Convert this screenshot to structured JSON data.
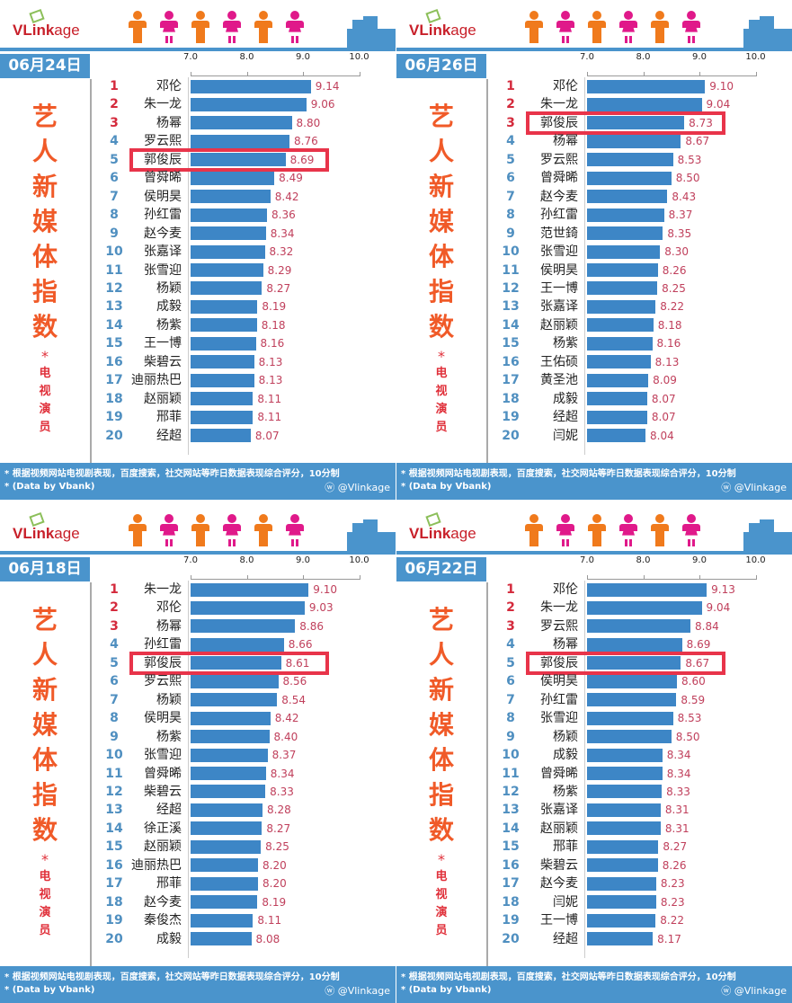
{
  "brand": {
    "logo_main": "VLink",
    "logo_suffix": "age"
  },
  "sidebar": {
    "title_chars": [
      "艺",
      "人",
      "新",
      "媒",
      "体",
      "指",
      "数"
    ],
    "star": "*",
    "subtitle_chars": [
      "电",
      "视",
      "演",
      "员"
    ]
  },
  "footer": {
    "note": "* 根据视频网站电视剧表现，百度搜索，社交网站等昨日数据表现综合评分，10分制",
    "source": "* (Data by Vbank)",
    "weibo": "@Vlinkage"
  },
  "colors": {
    "bar": "#3d86c6",
    "highlight": "#e8344a",
    "header": "#4a94cc",
    "male": "#f07a1c",
    "female": "#e0198a"
  },
  "chart_data": [
    {
      "type": "bar",
      "title": "06月24日",
      "xlim": [
        7.0,
        10.0
      ],
      "ticks": [
        "7.0",
        "8.0",
        "9.0",
        "10.0"
      ],
      "highlight": "郭俊辰",
      "categories": [
        "邓伦",
        "朱一龙",
        "杨幂",
        "罗云熙",
        "郭俊辰",
        "曾舜晞",
        "侯明昊",
        "孙红雷",
        "赵今麦",
        "张嘉译",
        "张雪迎",
        "杨颖",
        "成毅",
        "杨紫",
        "王一博",
        "柴碧云",
        "迪丽热巴",
        "赵丽颖",
        "邢菲",
        "经超"
      ],
      "values": [
        "9.14",
        "9.06",
        "8.80",
        "8.76",
        "8.69",
        "8.49",
        "8.42",
        "8.36",
        "8.34",
        "8.32",
        "8.29",
        "8.27",
        "8.19",
        "8.18",
        "8.16",
        "8.13",
        "8.13",
        "8.11",
        "8.11",
        "8.07"
      ]
    },
    {
      "type": "bar",
      "title": "06月26日",
      "xlim": [
        7.0,
        10.0
      ],
      "ticks": [
        "7.0",
        "8.0",
        "9.0",
        "10.0"
      ],
      "highlight": "郭俊辰",
      "categories": [
        "邓伦",
        "朱一龙",
        "郭俊辰",
        "杨幂",
        "罗云熙",
        "曾舜晞",
        "赵今麦",
        "孙红雷",
        "范世錡",
        "张雪迎",
        "侯明昊",
        "王一博",
        "张嘉译",
        "赵丽颖",
        "杨紫",
        "王佑硕",
        "黄圣池",
        "成毅",
        "经超",
        "闫妮"
      ],
      "values": [
        "9.10",
        "9.04",
        "8.73",
        "8.67",
        "8.53",
        "8.50",
        "8.43",
        "8.37",
        "8.35",
        "8.30",
        "8.26",
        "8.25",
        "8.22",
        "8.18",
        "8.16",
        "8.13",
        "8.09",
        "8.07",
        "8.07",
        "8.04"
      ]
    },
    {
      "type": "bar",
      "title": "06月18日",
      "xlim": [
        7.0,
        10.0
      ],
      "ticks": [
        "7.0",
        "8.0",
        "9.0",
        "10.0"
      ],
      "highlight": "郭俊辰",
      "categories": [
        "朱一龙",
        "邓伦",
        "杨幂",
        "孙红雷",
        "郭俊辰",
        "罗云熙",
        "杨颖",
        "侯明昊",
        "杨紫",
        "张雪迎",
        "曾舜晞",
        "柴碧云",
        "经超",
        "徐正溪",
        "赵丽颖",
        "迪丽热巴",
        "邢菲",
        "赵今麦",
        "秦俊杰",
        "成毅"
      ],
      "values": [
        "9.10",
        "9.03",
        "8.86",
        "8.66",
        "8.61",
        "8.56",
        "8.54",
        "8.42",
        "8.40",
        "8.37",
        "8.34",
        "8.33",
        "8.28",
        "8.27",
        "8.25",
        "8.20",
        "8.20",
        "8.19",
        "8.11",
        "8.08"
      ]
    },
    {
      "type": "bar",
      "title": "06月22日",
      "xlim": [
        7.0,
        10.0
      ],
      "ticks": [
        "7.0",
        "8.0",
        "9.0",
        "10.0"
      ],
      "highlight": "郭俊辰",
      "categories": [
        "邓伦",
        "朱一龙",
        "罗云熙",
        "杨幂",
        "郭俊辰",
        "侯明昊",
        "孙红雷",
        "张雪迎",
        "杨颖",
        "成毅",
        "曾舜晞",
        "杨紫",
        "张嘉译",
        "赵丽颖",
        "邢菲",
        "柴碧云",
        "赵今麦",
        "闫妮",
        "王一博",
        "经超"
      ],
      "values": [
        "9.13",
        "9.04",
        "8.84",
        "8.69",
        "8.67",
        "8.60",
        "8.59",
        "8.53",
        "8.50",
        "8.34",
        "8.34",
        "8.33",
        "8.31",
        "8.31",
        "8.27",
        "8.26",
        "8.23",
        "8.23",
        "8.22",
        "8.17"
      ]
    }
  ]
}
